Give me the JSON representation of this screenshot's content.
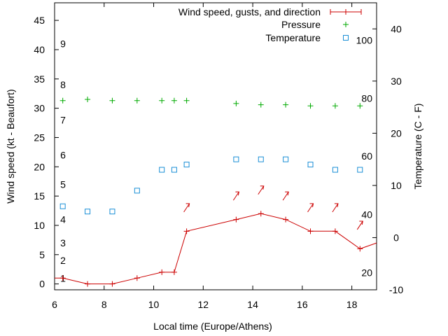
{
  "chart_data": {
    "type": "line",
    "xlabel": "Local time (Europe/Athens)",
    "ylabel": "Wind speed (kt - Beaufort)",
    "y2label": "Temperature (C - F)",
    "xlim": [
      6,
      19
    ],
    "ylim": [
      -1,
      48
    ],
    "y2lim": [
      -10,
      45
    ],
    "xticks": [
      "6",
      "8",
      "10",
      "12",
      "14",
      "16",
      "18"
    ],
    "yticks": [
      "0",
      "5",
      "10",
      "15",
      "20",
      "25",
      "30",
      "35",
      "40",
      "45"
    ],
    "y2ticks": [
      "-10",
      "0",
      "10",
      "20",
      "30",
      "40"
    ],
    "beaufort_labels": [
      {
        "text": "1",
        "y": 1
      },
      {
        "text": "2",
        "y": 4
      },
      {
        "text": "3",
        "y": 7
      },
      {
        "text": "4",
        "y": 11
      },
      {
        "text": "5",
        "y": 17
      },
      {
        "text": "6",
        "y": 22
      },
      {
        "text": "7",
        "y": 28
      },
      {
        "text": "8",
        "y": 34
      },
      {
        "text": "9",
        "y": 41
      }
    ],
    "fahrenheit_labels": [
      {
        "text": "20",
        "temp": -6.7
      },
      {
        "text": "40",
        "temp": 4.4
      },
      {
        "text": "60",
        "temp": 15.6
      },
      {
        "text": "80",
        "temp": 26.7
      },
      {
        "text": "100",
        "temp": 37.8
      }
    ],
    "series": [
      {
        "name": "Wind speed, gusts, and direction",
        "color": "#cc0000",
        "x": [
          6.0,
          6.33,
          7.33,
          8.33,
          9.33,
          10.33,
          10.83,
          11.33,
          13.33,
          14.33,
          15.33,
          16.33,
          17.33,
          18.33,
          19.0
        ],
        "y": [
          1,
          1,
          0,
          0,
          1,
          2,
          2,
          9,
          11,
          12,
          11,
          9,
          9,
          6,
          7
        ]
      },
      {
        "name": "Pressure",
        "color": "#00aa00",
        "x": [
          6.33,
          7.33,
          8.33,
          9.33,
          10.33,
          10.83,
          11.33,
          13.33,
          14.33,
          15.33,
          16.33,
          17.33,
          18.33
        ],
        "y": [
          31.3,
          31.5,
          31.3,
          31.3,
          31.3,
          31.3,
          31.3,
          30.8,
          30.6,
          30.6,
          30.4,
          30.4,
          30.4
        ]
      },
      {
        "name": "Temperature",
        "color": "#1a8fd6",
        "x": [
          6.33,
          7.33,
          8.33,
          9.33,
          10.33,
          10.83,
          11.33,
          13.33,
          14.33,
          15.33,
          16.33,
          17.33,
          18.33
        ],
        "y": [
          6,
          5,
          5,
          9,
          13,
          13,
          14,
          15,
          15,
          15,
          14,
          13,
          13
        ]
      }
    ],
    "wind_arrows": {
      "color": "#cc0000",
      "x": [
        11.33,
        13.33,
        14.33,
        15.33,
        16.33,
        17.33,
        18.33
      ],
      "y": [
        13,
        15,
        16,
        15,
        13,
        13,
        10
      ]
    },
    "legend_position": "top-right"
  }
}
